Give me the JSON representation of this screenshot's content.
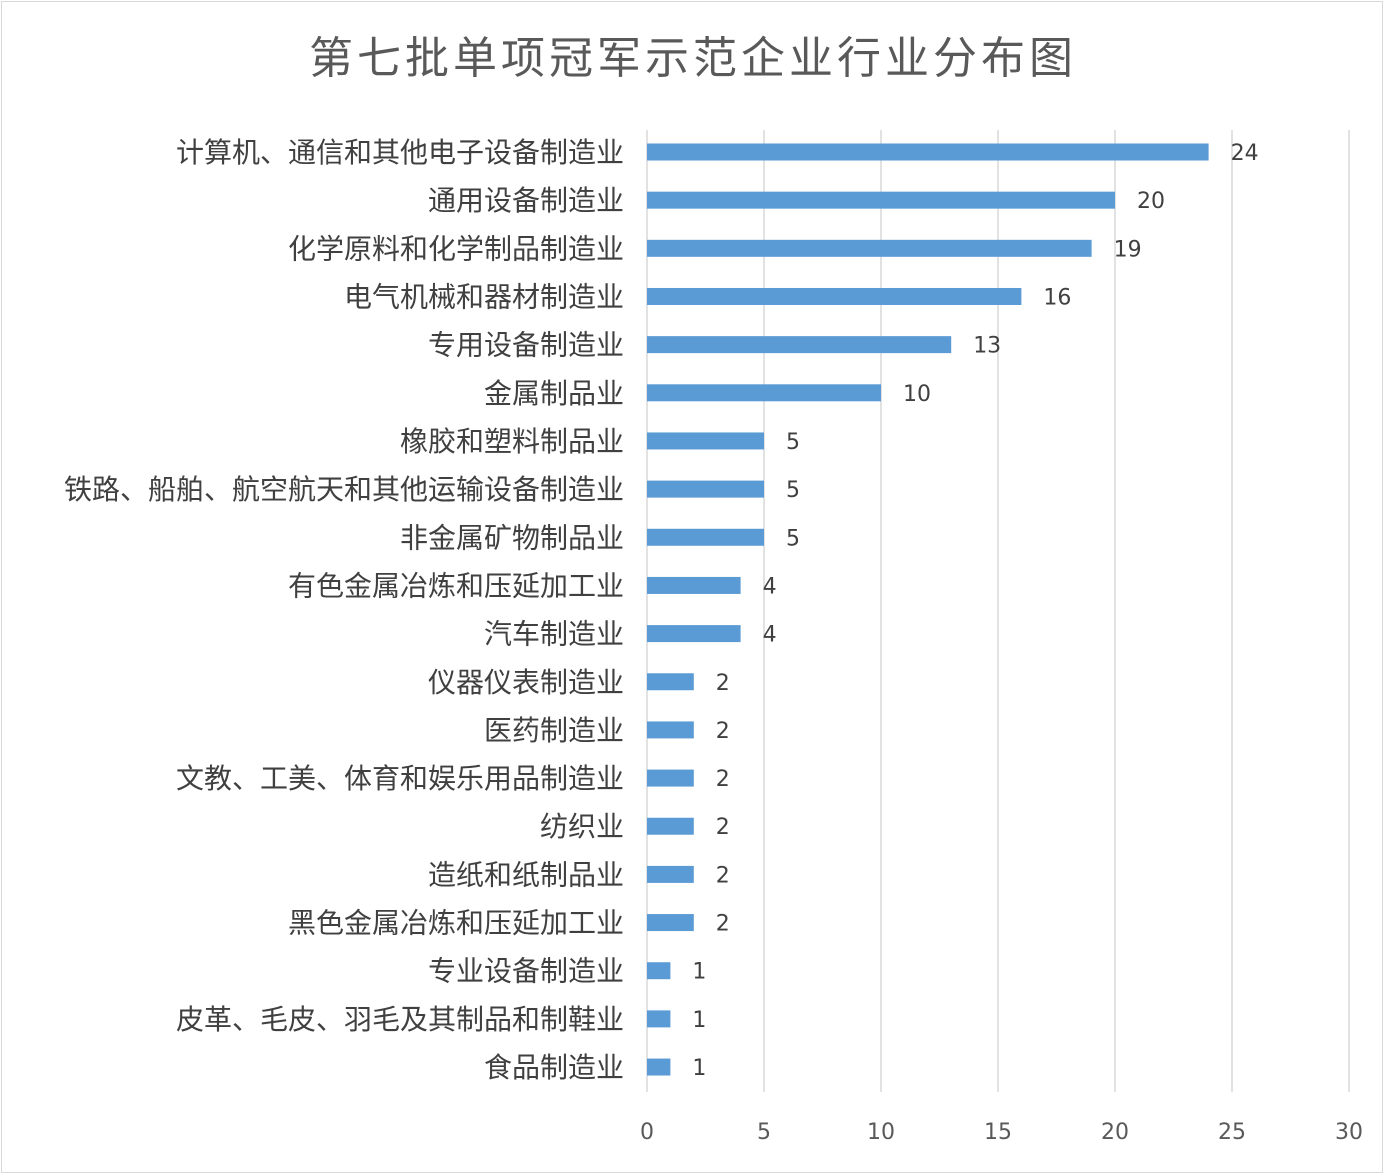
{
  "chart_data": {
    "type": "bar",
    "orientation": "horizontal",
    "title": "第七批单项冠军示范企业行业分布图",
    "categories": [
      "计算机、通信和其他电子设备制造业",
      "通用设备制造业",
      "化学原料和化学制品制造业",
      "电气机械和器材制造业",
      "专用设备制造业",
      "金属制品业",
      "橡胶和塑料制品业",
      "铁路、船舶、航空航天和其他运输设备制造业",
      "非金属矿物制品业",
      "有色金属冶炼和压延加工业",
      "汽车制造业",
      "仪器仪表制造业",
      "医药制造业",
      "文教、工美、体育和娱乐用品制造业",
      "纺织业",
      "造纸和纸制品业",
      "黑色金属冶炼和压延加工业",
      "专业设备制造业",
      "皮革、毛皮、羽毛及其制品和制鞋业",
      "食品制造业"
    ],
    "values": [
      24,
      20,
      19,
      16,
      13,
      10,
      5,
      5,
      5,
      4,
      4,
      2,
      2,
      2,
      2,
      2,
      2,
      1,
      1,
      1
    ],
    "xlim": [
      0,
      30
    ],
    "xticks": [
      "0",
      "5",
      "10",
      "15",
      "20",
      "25",
      "30"
    ],
    "xlabel": "",
    "ylabel": "",
    "grid": "vertical",
    "legend": "none",
    "data_labels": true,
    "bar_color": "#5b9bd5"
  }
}
